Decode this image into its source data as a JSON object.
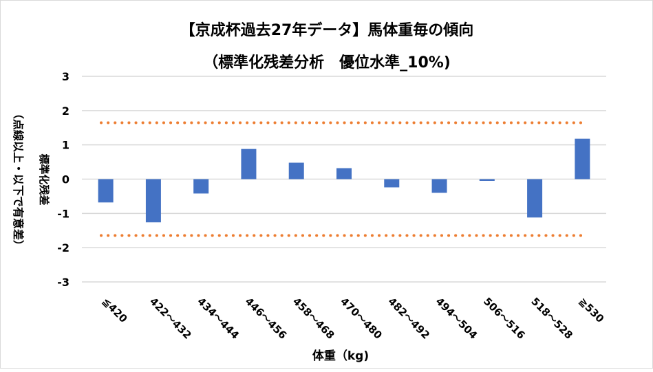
{
  "chart_data": {
    "type": "bar",
    "title": "【京成杯過去27年データ】馬体重毎の傾向",
    "subtitle": "（標準化残差分析　優位水準_10%)",
    "xlabel": "体重（kg)",
    "ylabel": "標準化残差",
    "ylabel_note": "（点線以上・以下で有意差）",
    "categories": [
      "≦420",
      "422～432",
      "434～444",
      "446～456",
      "458～468",
      "470～480",
      "482～492",
      "494～504",
      "506～516",
      "518～528",
      "≧530"
    ],
    "values": [
      -0.68,
      -1.26,
      -0.42,
      0.88,
      0.48,
      0.32,
      -0.24,
      -0.4,
      -0.05,
      -1.12,
      1.18
    ],
    "ylim": [
      -3,
      3
    ],
    "yticks": [
      "3",
      "2",
      "1",
      "0",
      "-1",
      "-2",
      "-3"
    ],
    "significance_lines": [
      1.645,
      -1.645
    ],
    "grid": true,
    "colors": {
      "bar": "#4472c4",
      "threshold": "#ed7d31",
      "grid": "#d9d9d9"
    }
  }
}
